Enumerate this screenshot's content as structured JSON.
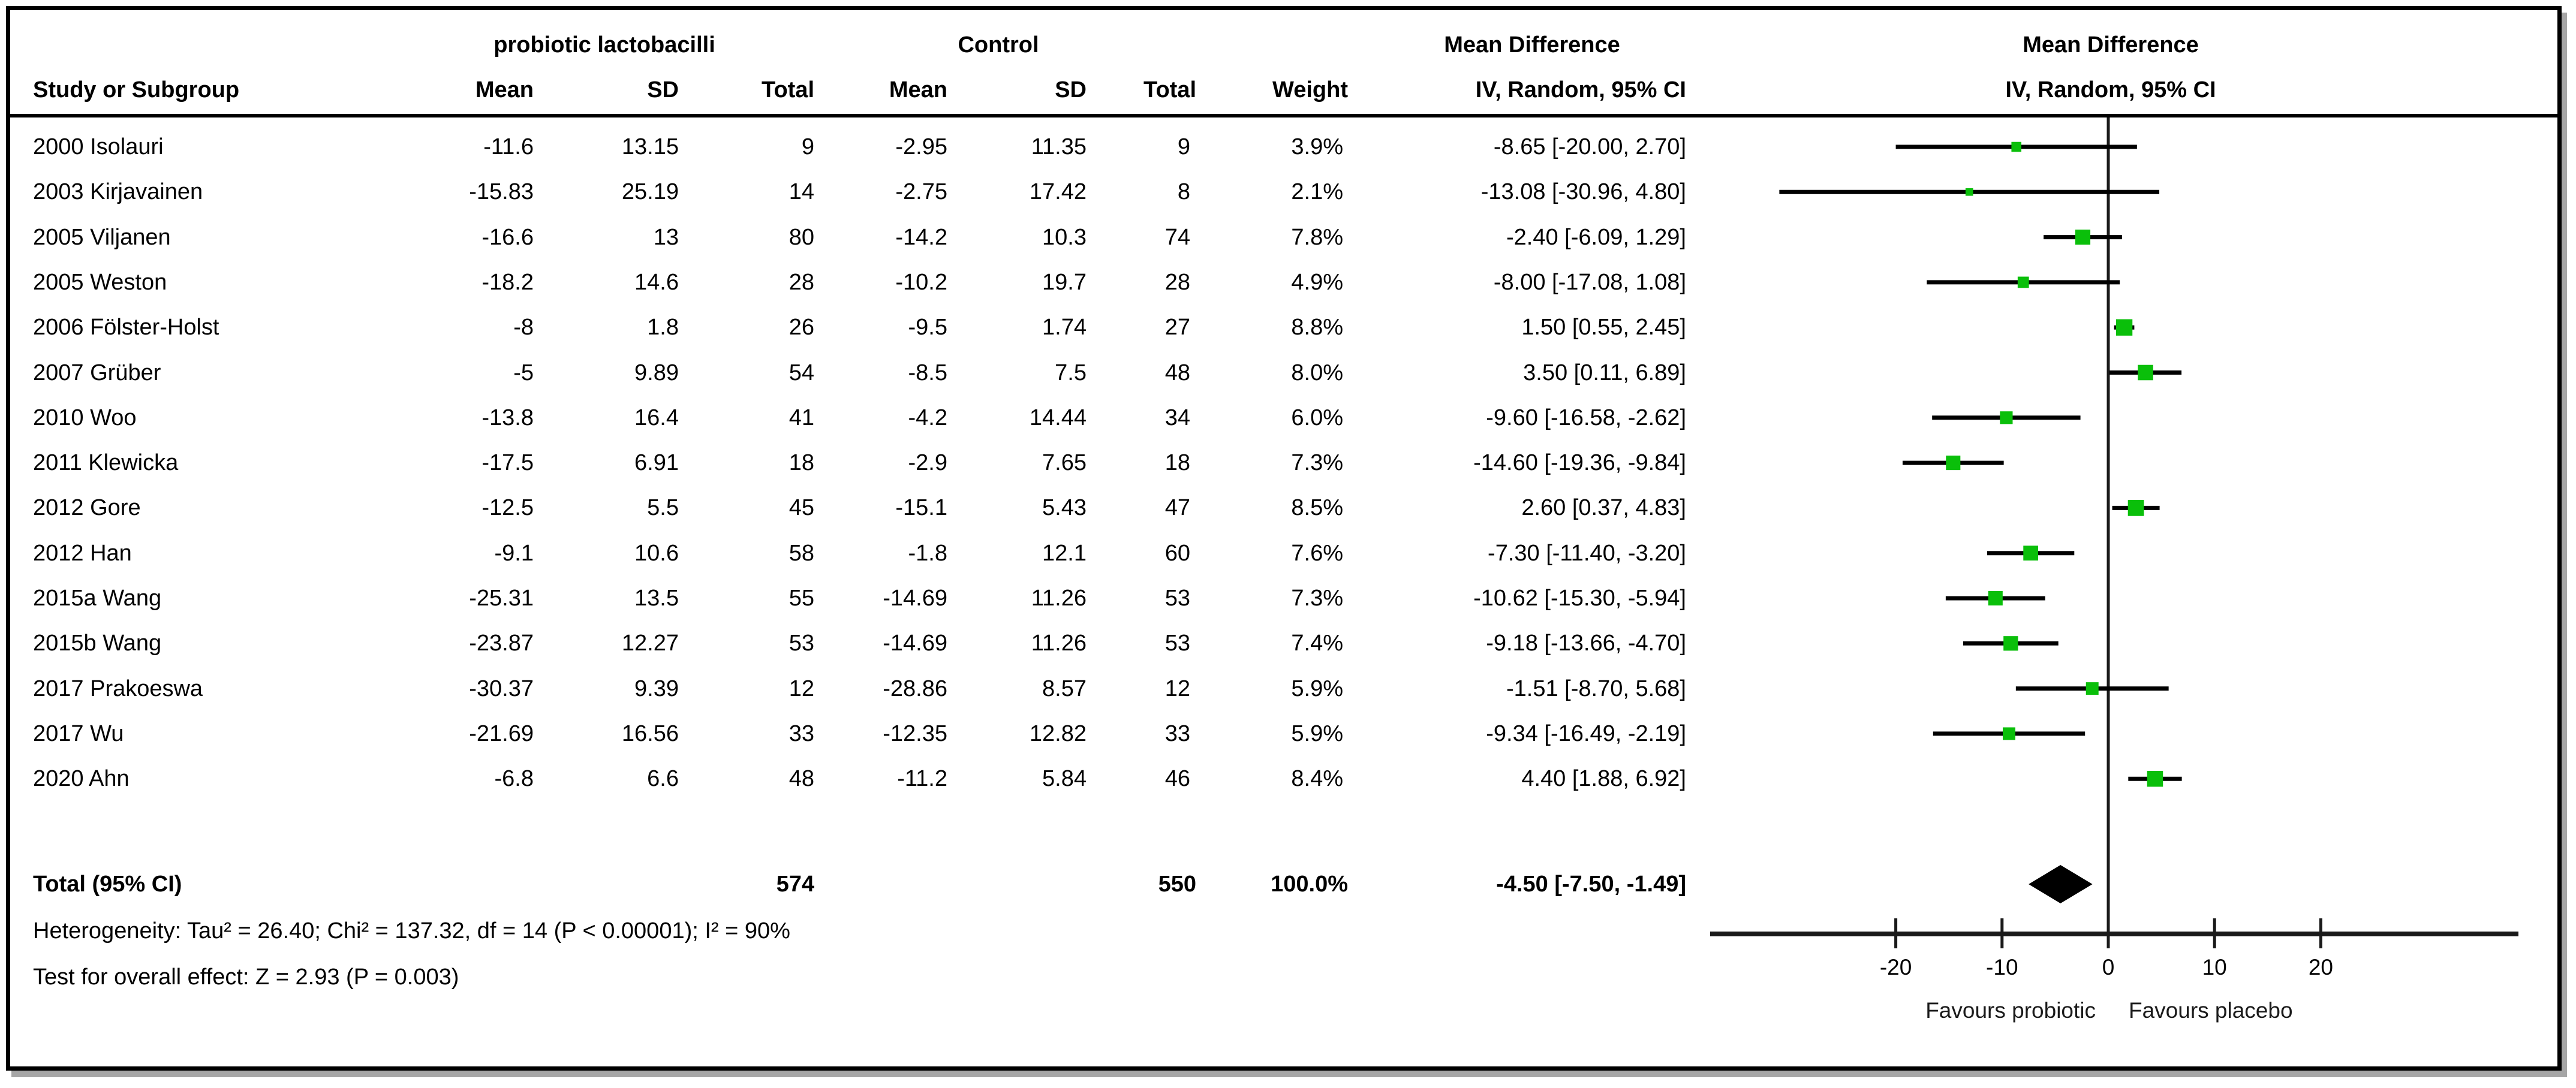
{
  "header": {
    "study_col": "Study or Subgroup",
    "group_experimental": "probiotic lactobacilli",
    "group_control": "Control",
    "md_table_title": "Mean Difference",
    "md_plot_title": "Mean Difference",
    "sub_mean": "Mean",
    "sub_sd": "SD",
    "sub_total": "Total",
    "sub_mean2": "Mean",
    "sub_sd2": "SD",
    "sub_total2": "Total",
    "sub_weight": "Weight",
    "sub_ci": "IV, Random, 95% CI",
    "sub_ci_plot": "IV, Random, 95% CI"
  },
  "colors": {
    "marker_green": "#0abf0a",
    "ci_line": "#000000",
    "diamond": "#000000",
    "axis": "#1a1a1a"
  },
  "chart_data": {
    "type": "forest",
    "effect_label": "Mean Difference, IV, Random, 95% CI",
    "x_ticks": [
      -20,
      -10,
      0,
      10,
      20
    ],
    "x_tick_labels": [
      "-20",
      "-10",
      "0",
      "10",
      "20"
    ],
    "xlim": [
      -37.5,
      38.6
    ],
    "favours_left": "Favours probiotic",
    "favours_right": "Favours placebo",
    "studies": [
      {
        "label": "2000 Isolauri",
        "mean1": "-11.6",
        "sd1": "13.15",
        "total1": "9",
        "mean2": "-2.95",
        "sd2": "11.35",
        "total2": "9",
        "weight": "3.9%",
        "ci_text": "-8.65 [-20.00, 2.70]",
        "md": -8.65,
        "lo": -20.0,
        "hi": 2.7,
        "weight_pct": 3.9
      },
      {
        "label": "2003 Kirjavainen",
        "mean1": "-15.83",
        "sd1": "25.19",
        "total1": "14",
        "mean2": "-2.75",
        "sd2": "17.42",
        "total2": "8",
        "weight": "2.1%",
        "ci_text": "-13.08 [-30.96, 4.80]",
        "md": -13.08,
        "lo": -30.96,
        "hi": 4.8,
        "weight_pct": 2.1
      },
      {
        "label": "2005 Viljanen",
        "mean1": "-16.6",
        "sd1": "13",
        "total1": "80",
        "mean2": "-14.2",
        "sd2": "10.3",
        "total2": "74",
        "weight": "7.8%",
        "ci_text": "-2.40 [-6.09, 1.29]",
        "md": -2.4,
        "lo": -6.09,
        "hi": 1.29,
        "weight_pct": 7.8
      },
      {
        "label": "2005 Weston",
        "mean1": "-18.2",
        "sd1": "14.6",
        "total1": "28",
        "mean2": "-10.2",
        "sd2": "19.7",
        "total2": "28",
        "weight": "4.9%",
        "ci_text": "-8.00 [-17.08, 1.08]",
        "md": -8.0,
        "lo": -17.08,
        "hi": 1.08,
        "weight_pct": 4.9
      },
      {
        "label": "2006 Fölster-Holst",
        "mean1": "-8",
        "sd1": "1.8",
        "total1": "26",
        "mean2": "-9.5",
        "sd2": "1.74",
        "total2": "27",
        "weight": "8.8%",
        "ci_text": "1.50 [0.55, 2.45]",
        "md": 1.5,
        "lo": 0.55,
        "hi": 2.45,
        "weight_pct": 8.8
      },
      {
        "label": "2007 Grüber",
        "mean1": "-5",
        "sd1": "9.89",
        "total1": "54",
        "mean2": "-8.5",
        "sd2": "7.5",
        "total2": "48",
        "weight": "8.0%",
        "ci_text": "3.50 [0.11, 6.89]",
        "md": 3.5,
        "lo": 0.11,
        "hi": 6.89,
        "weight_pct": 8.0
      },
      {
        "label": "2010 Woo",
        "mean1": "-13.8",
        "sd1": "16.4",
        "total1": "41",
        "mean2": "-4.2",
        "sd2": "14.44",
        "total2": "34",
        "weight": "6.0%",
        "ci_text": "-9.60 [-16.58, -2.62]",
        "md": -9.6,
        "lo": -16.58,
        "hi": -2.62,
        "weight_pct": 6.0
      },
      {
        "label": "2011 Klewicka",
        "mean1": "-17.5",
        "sd1": "6.91",
        "total1": "18",
        "mean2": "-2.9",
        "sd2": "7.65",
        "total2": "18",
        "weight": "7.3%",
        "ci_text": "-14.60 [-19.36, -9.84]",
        "md": -14.6,
        "lo": -19.36,
        "hi": -9.84,
        "weight_pct": 7.3
      },
      {
        "label": "2012 Gore",
        "mean1": "-12.5",
        "sd1": "5.5",
        "total1": "45",
        "mean2": "-15.1",
        "sd2": "5.43",
        "total2": "47",
        "weight": "8.5%",
        "ci_text": "2.60 [0.37, 4.83]",
        "md": 2.6,
        "lo": 0.37,
        "hi": 4.83,
        "weight_pct": 8.5
      },
      {
        "label": "2012 Han",
        "mean1": "-9.1",
        "sd1": "10.6",
        "total1": "58",
        "mean2": "-1.8",
        "sd2": "12.1",
        "total2": "60",
        "weight": "7.6%",
        "ci_text": "-7.30 [-11.40, -3.20]",
        "md": -7.3,
        "lo": -11.4,
        "hi": -3.2,
        "weight_pct": 7.6
      },
      {
        "label": "2015a Wang",
        "mean1": "-25.31",
        "sd1": "13.5",
        "total1": "55",
        "mean2": "-14.69",
        "sd2": "11.26",
        "total2": "53",
        "weight": "7.3%",
        "ci_text": "-10.62 [-15.30, -5.94]",
        "md": -10.62,
        "lo": -15.3,
        "hi": -5.94,
        "weight_pct": 7.3
      },
      {
        "label": "2015b Wang",
        "mean1": "-23.87",
        "sd1": "12.27",
        "total1": "53",
        "mean2": "-14.69",
        "sd2": "11.26",
        "total2": "53",
        "weight": "7.4%",
        "ci_text": "-9.18 [-13.66, -4.70]",
        "md": -9.18,
        "lo": -13.66,
        "hi": -4.7,
        "weight_pct": 7.4
      },
      {
        "label": "2017 Prakoeswa",
        "mean1": "-30.37",
        "sd1": "9.39",
        "total1": "12",
        "mean2": "-28.86",
        "sd2": "8.57",
        "total2": "12",
        "weight": "5.9%",
        "ci_text": "-1.51 [-8.70, 5.68]",
        "md": -1.51,
        "lo": -8.7,
        "hi": 5.68,
        "weight_pct": 5.9
      },
      {
        "label": "2017 Wu",
        "mean1": "-21.69",
        "sd1": "16.56",
        "total1": "33",
        "mean2": "-12.35",
        "sd2": "12.82",
        "total2": "33",
        "weight": "5.9%",
        "ci_text": "-9.34 [-16.49, -2.19]",
        "md": -9.34,
        "lo": -16.49,
        "hi": -2.19,
        "weight_pct": 5.9
      },
      {
        "label": "2020 Ahn",
        "mean1": "-6.8",
        "sd1": "6.6",
        "total1": "48",
        "mean2": "-11.2",
        "sd2": "5.84",
        "total2": "46",
        "weight": "8.4%",
        "ci_text": "4.40 [1.88, 6.92]",
        "md": 4.4,
        "lo": 1.88,
        "hi": 6.92,
        "weight_pct": 8.4
      }
    ],
    "total": {
      "label": "Total (95% CI)",
      "total1": "574",
      "total2": "550",
      "weight": "100.0%",
      "ci_text": "-4.50 [-7.50, -1.49]",
      "md": -4.5,
      "lo": -7.5,
      "hi": -1.49
    },
    "heterogeneity": "Heterogeneity: Tau² = 26.40; Chi² = 137.32, df = 14 (P < 0.00001); I² = 90%",
    "overall_effect": "Test for overall effect: Z = 2.93 (P = 0.003)"
  }
}
